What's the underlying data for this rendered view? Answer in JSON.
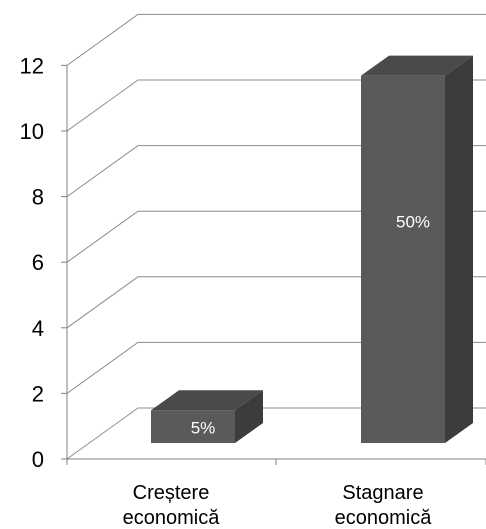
{
  "chart_data": {
    "type": "bar",
    "categories": [
      "Creștere\neconomică",
      "Stagnare\neconomică"
    ],
    "values": [
      1,
      11.2
    ],
    "data_labels": [
      "5%",
      "50%"
    ],
    "yticks": [
      "0",
      "2",
      "4",
      "6",
      "8",
      "10",
      "12"
    ],
    "ylim": [
      0,
      12
    ],
    "grid": true,
    "legend": "none",
    "three_d": true,
    "colors": {
      "front": "#5a5a5a",
      "side": "#3c3c3c",
      "top": "#4a4a4a",
      "grid": "#8c8c8c"
    }
  }
}
